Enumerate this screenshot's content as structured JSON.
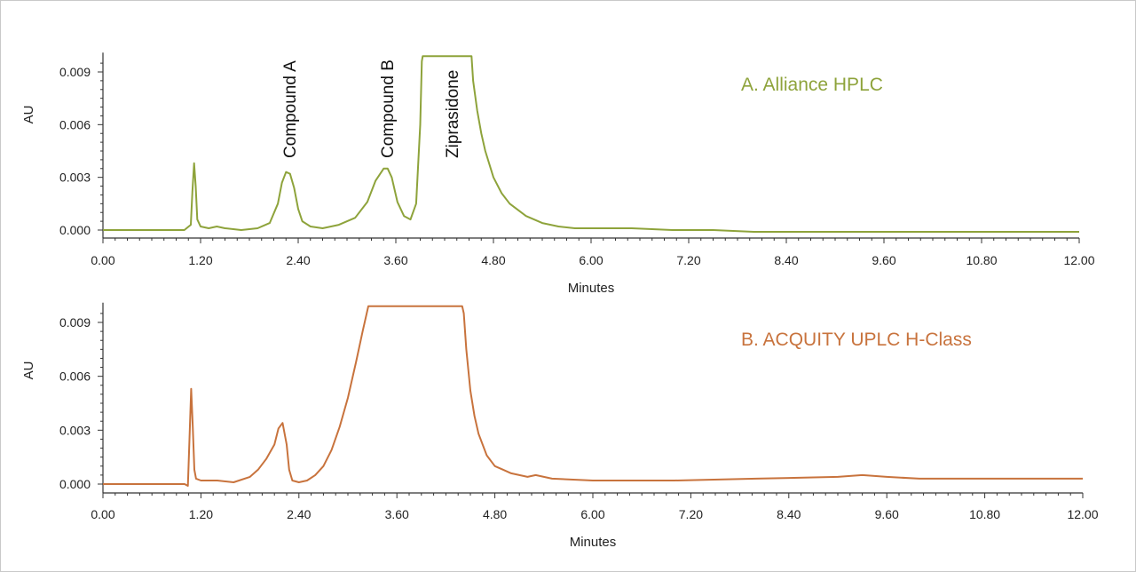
{
  "chart_data": [
    {
      "type": "line",
      "title": "A. Alliance HPLC",
      "color": "#8ea33b",
      "xlabel": "Minutes",
      "ylabel": "AU",
      "xlim": [
        0,
        12
      ],
      "ylim": [
        -0.0003,
        0.0099
      ],
      "x_ticks": [
        "0.00",
        "1.20",
        "2.40",
        "3.60",
        "4.80",
        "6.00",
        "7.20",
        "8.40",
        "9.60",
        "10.80",
        "12.00"
      ],
      "y_ticks": [
        "0.000",
        "0.003",
        "0.006",
        "0.009"
      ],
      "annotations": [
        {
          "text": "Compound A",
          "x": 2.3
        },
        {
          "text": "Compound B",
          "x": 3.5
        },
        {
          "text": "Ziprasidone",
          "x": 4.3
        }
      ],
      "series": [
        {
          "x": [
            0,
            0.5,
            1.0,
            1.08,
            1.1,
            1.12,
            1.14,
            1.16,
            1.2,
            1.3,
            1.4,
            1.5,
            1.7,
            1.9,
            2.05,
            2.15,
            2.2,
            2.25,
            2.3,
            2.35,
            2.4,
            2.45,
            2.55,
            2.7,
            2.9,
            3.1,
            3.25,
            3.35,
            3.45,
            3.5,
            3.55,
            3.62,
            3.7,
            3.78,
            3.85,
            3.9,
            3.92,
            3.93,
            3.95,
            4.0,
            4.2,
            4.4,
            4.5,
            4.52,
            4.53,
            4.55,
            4.6,
            4.65,
            4.7,
            4.8,
            4.9,
            5.0,
            5.2,
            5.4,
            5.6,
            5.8,
            6.0,
            6.5,
            7.0,
            7.5,
            8.0,
            9.0,
            9.6,
            10.0,
            11.0,
            12.0
          ],
          "y": [
            0.0,
            0.0,
            0.0,
            0.0003,
            0.0022,
            0.0038,
            0.0025,
            0.0006,
            0.0002,
            0.0001,
            0.0002,
            0.0001,
            0.0,
            0.0001,
            0.0004,
            0.0015,
            0.0027,
            0.0033,
            0.0032,
            0.0024,
            0.0012,
            0.0005,
            0.0002,
            0.0001,
            0.0003,
            0.0007,
            0.0016,
            0.0028,
            0.0035,
            0.0035,
            0.003,
            0.0016,
            0.0008,
            0.0006,
            0.0015,
            0.006,
            0.0096,
            0.0099,
            0.0099,
            0.0099,
            0.0099,
            0.0099,
            0.0099,
            0.0099,
            0.0099,
            0.0085,
            0.0068,
            0.0055,
            0.0045,
            0.003,
            0.0021,
            0.0015,
            0.0008,
            0.0004,
            0.0002,
            0.0001,
            0.0001,
            0.0001,
            0.0,
            0.0,
            -0.0001,
            -0.0001,
            -0.0001,
            -0.0001,
            -0.0001,
            -0.0001
          ]
        }
      ]
    },
    {
      "type": "line",
      "title": "B. ACQUITY UPLC H-Class",
      "color": "#c8733d",
      "xlabel": "Minutes",
      "ylabel": "AU",
      "xlim": [
        0,
        12
      ],
      "ylim": [
        -0.0003,
        0.0099
      ],
      "x_ticks": [
        "0.00",
        "1.20",
        "2.40",
        "3.60",
        "4.80",
        "6.00",
        "7.20",
        "8.40",
        "9.60",
        "10.80",
        "12.00"
      ],
      "y_ticks": [
        "0.000",
        "0.003",
        "0.006",
        "0.009"
      ],
      "series": [
        {
          "x": [
            0,
            0.5,
            1.0,
            1.04,
            1.06,
            1.08,
            1.1,
            1.12,
            1.14,
            1.2,
            1.4,
            1.6,
            1.8,
            1.9,
            2.0,
            2.1,
            2.15,
            2.2,
            2.25,
            2.28,
            2.32,
            2.4,
            2.5,
            2.6,
            2.7,
            2.8,
            2.9,
            3.0,
            3.1,
            3.18,
            3.25,
            4.4,
            4.42,
            4.45,
            4.5,
            4.55,
            4.6,
            4.7,
            4.8,
            4.9,
            5.0,
            5.2,
            5.3,
            5.5,
            6.0,
            7.0,
            8.0,
            9.0,
            9.3,
            9.6,
            10.0,
            11.0,
            12.0
          ],
          "y": [
            0.0,
            0.0,
            0.0,
            -0.0001,
            0.0025,
            0.0053,
            0.0032,
            0.0008,
            0.0003,
            0.0002,
            0.0002,
            0.0001,
            0.0004,
            0.0008,
            0.0014,
            0.0022,
            0.0031,
            0.0034,
            0.0022,
            0.0008,
            0.0002,
            0.0001,
            0.0002,
            0.0005,
            0.001,
            0.0019,
            0.0032,
            0.0048,
            0.0068,
            0.0085,
            0.0099,
            0.0099,
            0.0095,
            0.0075,
            0.0052,
            0.0038,
            0.0028,
            0.0016,
            0.001,
            0.0008,
            0.0006,
            0.0004,
            0.0005,
            0.0003,
            0.0002,
            0.0002,
            0.0003,
            0.0004,
            0.0005,
            0.0004,
            0.0003,
            0.0003,
            0.0003
          ]
        }
      ]
    }
  ]
}
